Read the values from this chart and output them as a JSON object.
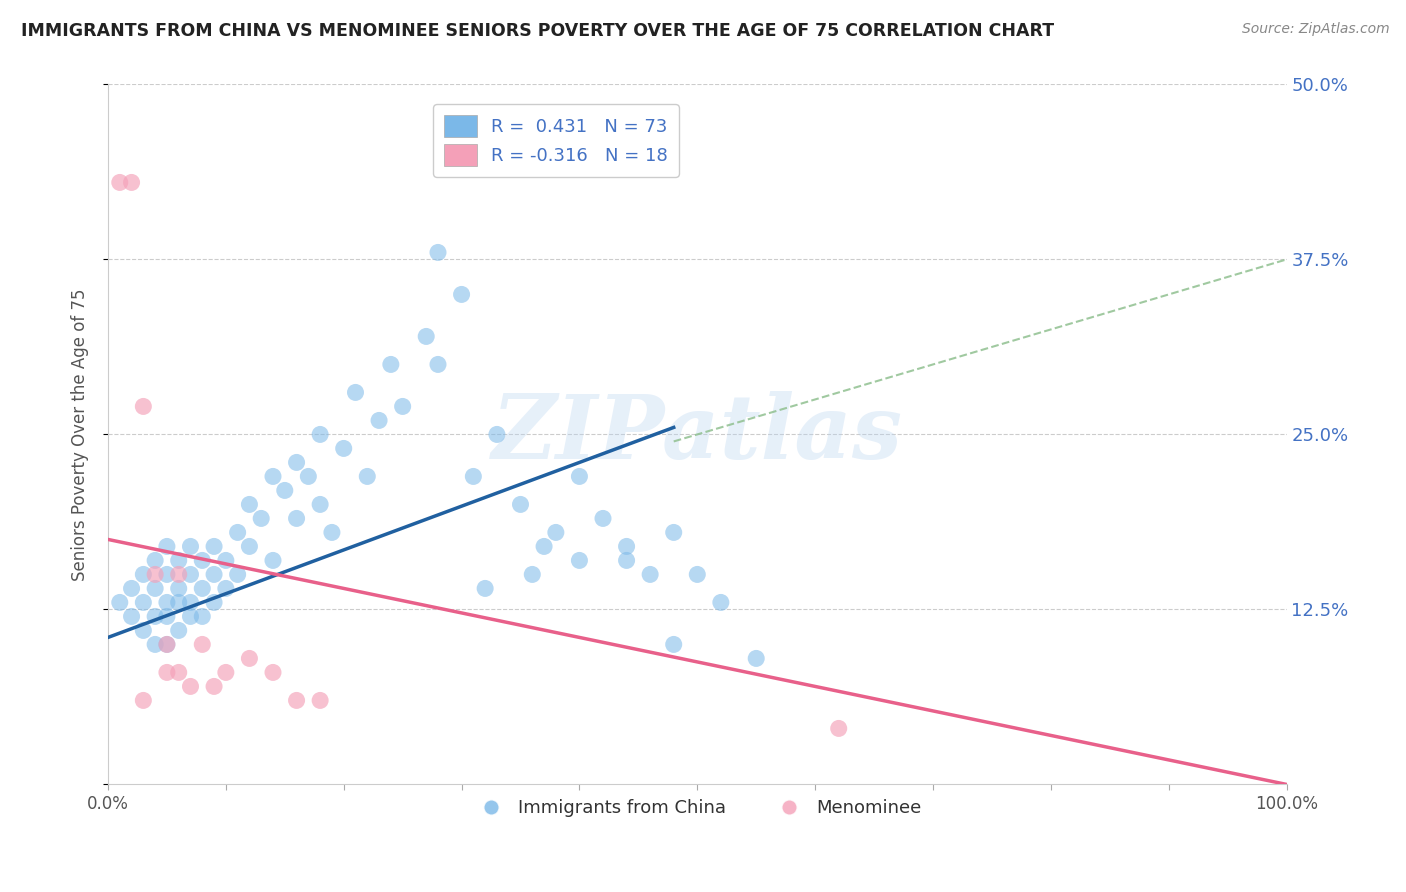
{
  "title": "IMMIGRANTS FROM CHINA VS MENOMINEE SENIORS POVERTY OVER THE AGE OF 75 CORRELATION CHART",
  "source": "Source: ZipAtlas.com",
  "ylabel": "Seniors Poverty Over the Age of 75",
  "watermark": "ZIPatlas",
  "legend1_label": "R =  0.431   N = 73",
  "legend2_label": "R = -0.316   N = 18",
  "legend_bottom1": "Immigrants from China",
  "legend_bottom2": "Menominee",
  "blue_color": "#7bb8e8",
  "pink_color": "#f4a0b8",
  "blue_line_color": "#2060a0",
  "pink_line_color": "#e8608a",
  "dashed_line_color": "#90c090",
  "xlim": [
    0.0,
    1.0
  ],
  "ylim": [
    0.0,
    0.5
  ],
  "yticks": [
    0.0,
    0.125,
    0.25,
    0.375,
    0.5
  ],
  "blue_scatter_x": [
    0.01,
    0.02,
    0.02,
    0.03,
    0.03,
    0.03,
    0.04,
    0.04,
    0.04,
    0.04,
    0.05,
    0.05,
    0.05,
    0.05,
    0.05,
    0.06,
    0.06,
    0.06,
    0.06,
    0.07,
    0.07,
    0.07,
    0.07,
    0.08,
    0.08,
    0.08,
    0.09,
    0.09,
    0.09,
    0.1,
    0.1,
    0.11,
    0.11,
    0.12,
    0.12,
    0.13,
    0.14,
    0.14,
    0.15,
    0.16,
    0.16,
    0.17,
    0.18,
    0.18,
    0.19,
    0.2,
    0.21,
    0.22,
    0.23,
    0.24,
    0.25,
    0.27,
    0.28,
    0.3,
    0.31,
    0.33,
    0.35,
    0.37,
    0.38,
    0.4,
    0.42,
    0.44,
    0.46,
    0.48,
    0.5,
    0.52,
    0.28,
    0.32,
    0.36,
    0.4,
    0.44,
    0.48,
    0.55
  ],
  "blue_scatter_y": [
    0.13,
    0.14,
    0.12,
    0.13,
    0.15,
    0.11,
    0.14,
    0.12,
    0.1,
    0.16,
    0.13,
    0.15,
    0.12,
    0.1,
    0.17,
    0.14,
    0.13,
    0.11,
    0.16,
    0.15,
    0.13,
    0.12,
    0.17,
    0.14,
    0.16,
    0.12,
    0.15,
    0.13,
    0.17,
    0.14,
    0.16,
    0.15,
    0.18,
    0.17,
    0.2,
    0.19,
    0.22,
    0.16,
    0.21,
    0.23,
    0.19,
    0.22,
    0.2,
    0.25,
    0.18,
    0.24,
    0.28,
    0.22,
    0.26,
    0.3,
    0.27,
    0.32,
    0.3,
    0.35,
    0.22,
    0.25,
    0.2,
    0.17,
    0.18,
    0.22,
    0.19,
    0.17,
    0.15,
    0.18,
    0.15,
    0.13,
    0.38,
    0.14,
    0.15,
    0.16,
    0.16,
    0.1,
    0.09
  ],
  "pink_scatter_x": [
    0.01,
    0.02,
    0.03,
    0.04,
    0.05,
    0.05,
    0.06,
    0.06,
    0.07,
    0.08,
    0.09,
    0.1,
    0.12,
    0.14,
    0.16,
    0.18,
    0.62,
    0.03
  ],
  "pink_scatter_y": [
    0.43,
    0.43,
    0.27,
    0.15,
    0.1,
    0.08,
    0.15,
    0.08,
    0.07,
    0.1,
    0.07,
    0.08,
    0.09,
    0.08,
    0.06,
    0.06,
    0.04,
    0.06
  ],
  "blue_trend_x": [
    0.0,
    0.48
  ],
  "blue_trend_y": [
    0.105,
    0.255
  ],
  "pink_trend_x": [
    0.0,
    1.0
  ],
  "pink_trend_y": [
    0.175,
    0.0
  ],
  "dashed_trend_x": [
    0.48,
    1.0
  ],
  "dashed_trend_y": [
    0.245,
    0.375
  ]
}
